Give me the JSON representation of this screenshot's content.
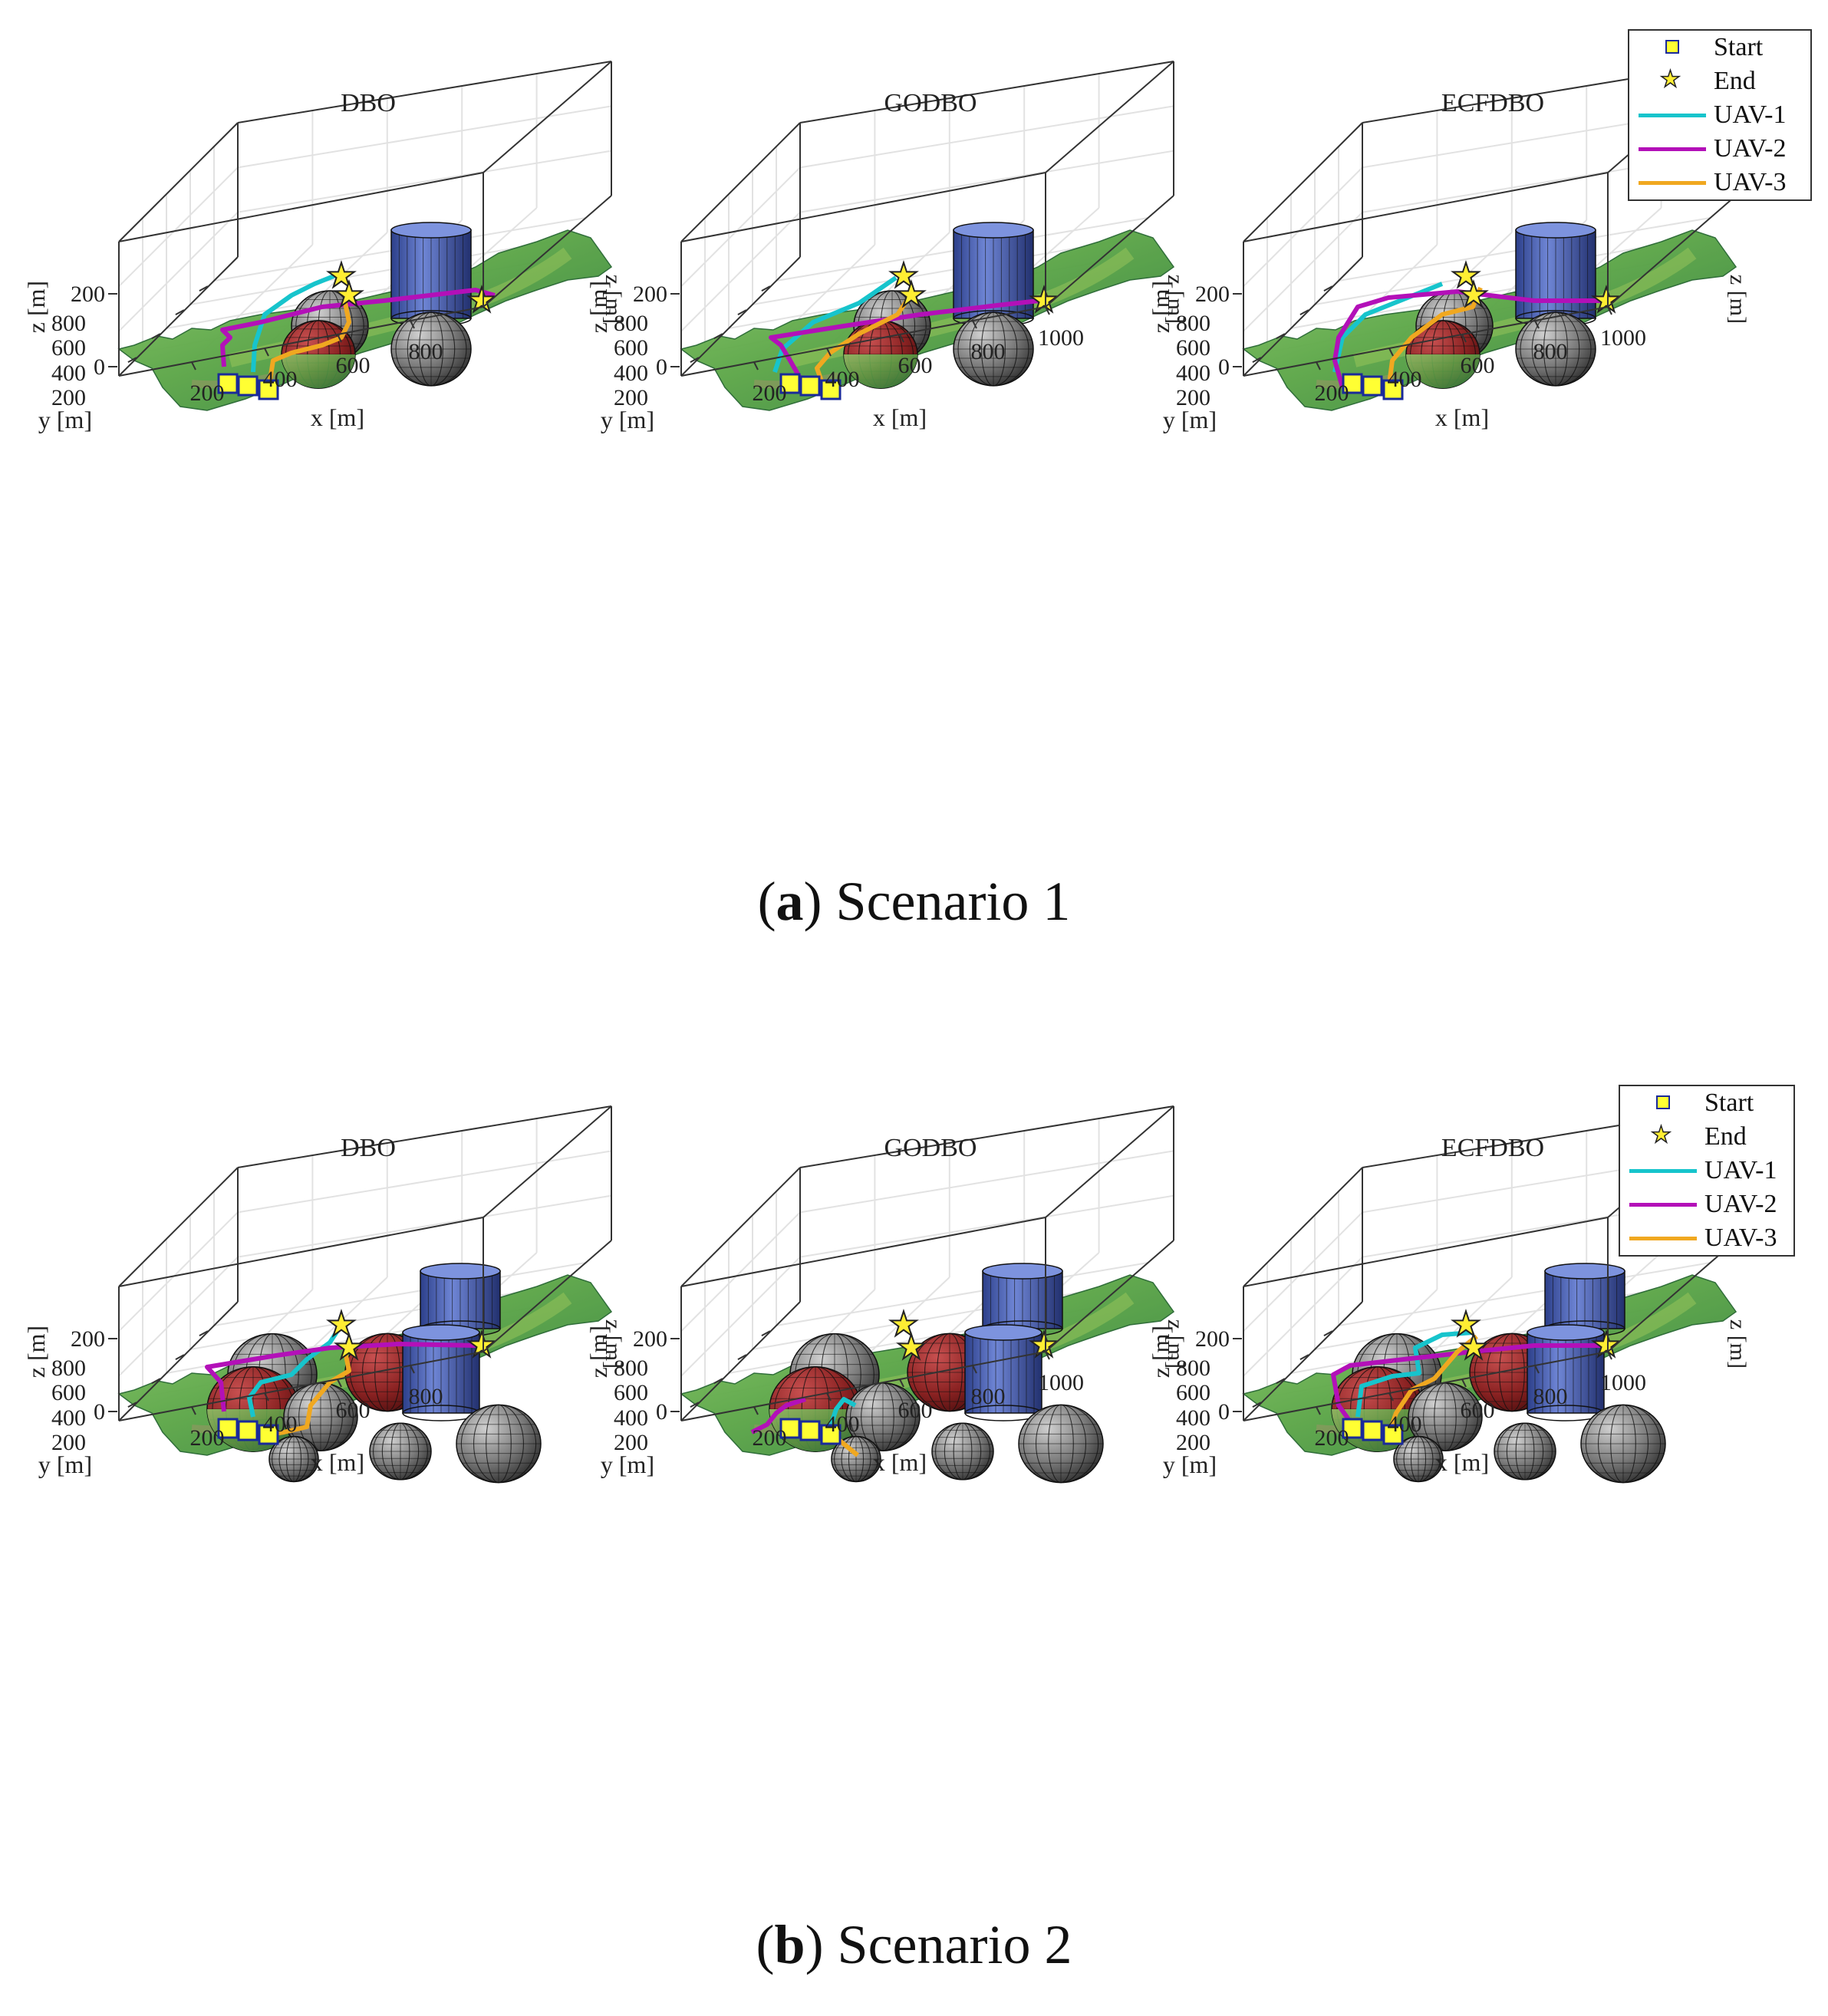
{
  "chart_data": [
    {
      "type": "3d-line",
      "scenario": "Scenario 1",
      "caption": {
        "letter": "a",
        "text": " Scenario 1"
      },
      "legend": [
        {
          "label": "Start",
          "symbol": "square",
          "color": "#ffff33"
        },
        {
          "label": "End",
          "symbol": "star",
          "color": "#ffee33"
        },
        {
          "label": "UAV-1",
          "symbol": "line",
          "color": "#17c4cc"
        },
        {
          "label": "UAV-2",
          "symbol": "line",
          "color": "#b310b8"
        },
        {
          "label": "UAV-3",
          "symbol": "line",
          "color": "#f0a820"
        }
      ],
      "panels": [
        {
          "title": "DBO",
          "xlabel": "x [m]",
          "ylabel": "y [m]",
          "zlabel": "z [m]",
          "xticks": [
            "200",
            "400",
            "600",
            "800"
          ],
          "yticks": [
            "200",
            "400",
            "600",
            "800"
          ],
          "zticks": [
            "0",
            "200"
          ],
          "xlim": [
            0,
            1000
          ],
          "ylim": [
            0,
            1000
          ],
          "zlim": [
            0,
            400
          ]
        },
        {
          "title": "GODBO",
          "xlabel": "x [m]",
          "ylabel": "y [m]",
          "zlabel": "z [m]",
          "xticks": [
            "200",
            "400",
            "600",
            "800",
            "1000"
          ],
          "yticks": [
            "200",
            "400",
            "600",
            "800"
          ],
          "zticks": [
            "0",
            "200"
          ],
          "xlim": [
            0,
            1000
          ],
          "ylim": [
            0,
            1000
          ],
          "zlim": [
            0,
            400
          ]
        },
        {
          "title": "ECFDBO",
          "xlabel": "x [m]",
          "ylabel": "y [m]",
          "zlabel": "z [m]",
          "xticks": [
            "200",
            "400",
            "600",
            "800",
            "1000"
          ],
          "yticks": [
            "200",
            "400",
            "600",
            "800"
          ],
          "zticks": [
            "0",
            "200"
          ],
          "xlim": [
            0,
            1000
          ],
          "ylim": [
            0,
            1000
          ],
          "zlim": [
            0,
            400
          ]
        }
      ]
    },
    {
      "type": "3d-line",
      "scenario": "Scenario 2",
      "caption": {
        "letter": "b",
        "text": " Scenario 2"
      },
      "legend": [
        {
          "label": "Start",
          "symbol": "square",
          "color": "#ffff33"
        },
        {
          "label": "End",
          "symbol": "star",
          "color": "#ffee33"
        },
        {
          "label": "UAV-1",
          "symbol": "line",
          "color": "#17c4cc"
        },
        {
          "label": "UAV-2",
          "symbol": "line",
          "color": "#b310b8"
        },
        {
          "label": "UAV-3",
          "symbol": "line",
          "color": "#f0a820"
        }
      ],
      "panels": [
        {
          "title": "DBO",
          "xlabel": "x [m]",
          "ylabel": "y [m]",
          "zlabel": "z [m]",
          "xticks": [
            "200",
            "400",
            "600",
            "800"
          ],
          "yticks": [
            "200",
            "400",
            "600",
            "800"
          ],
          "zticks": [
            "0",
            "200"
          ],
          "xlim": [
            0,
            1000
          ],
          "ylim": [
            0,
            1000
          ],
          "zlim": [
            0,
            400
          ]
        },
        {
          "title": "GODBO",
          "xlabel": "x [m]",
          "ylabel": "y [m]",
          "zlabel": "z [m]",
          "xticks": [
            "200",
            "400",
            "600",
            "800",
            "1000"
          ],
          "yticks": [
            "200",
            "400",
            "600",
            "800"
          ],
          "zticks": [
            "0",
            "200"
          ],
          "xlim": [
            0,
            1000
          ],
          "ylim": [
            0,
            1000
          ],
          "zlim": [
            0,
            400
          ]
        },
        {
          "title": "ECFDBO",
          "xlabel": "x [m]",
          "ylabel": "y [m]",
          "zlabel": "z [m]",
          "xticks": [
            "200",
            "400",
            "600",
            "800",
            "1000"
          ],
          "yticks": [
            "200",
            "400",
            "600",
            "800"
          ],
          "zticks": [
            "0",
            "200"
          ],
          "xlim": [
            0,
            1000
          ],
          "ylim": [
            0,
            1000
          ],
          "zlim": [
            0,
            400
          ]
        }
      ]
    }
  ]
}
